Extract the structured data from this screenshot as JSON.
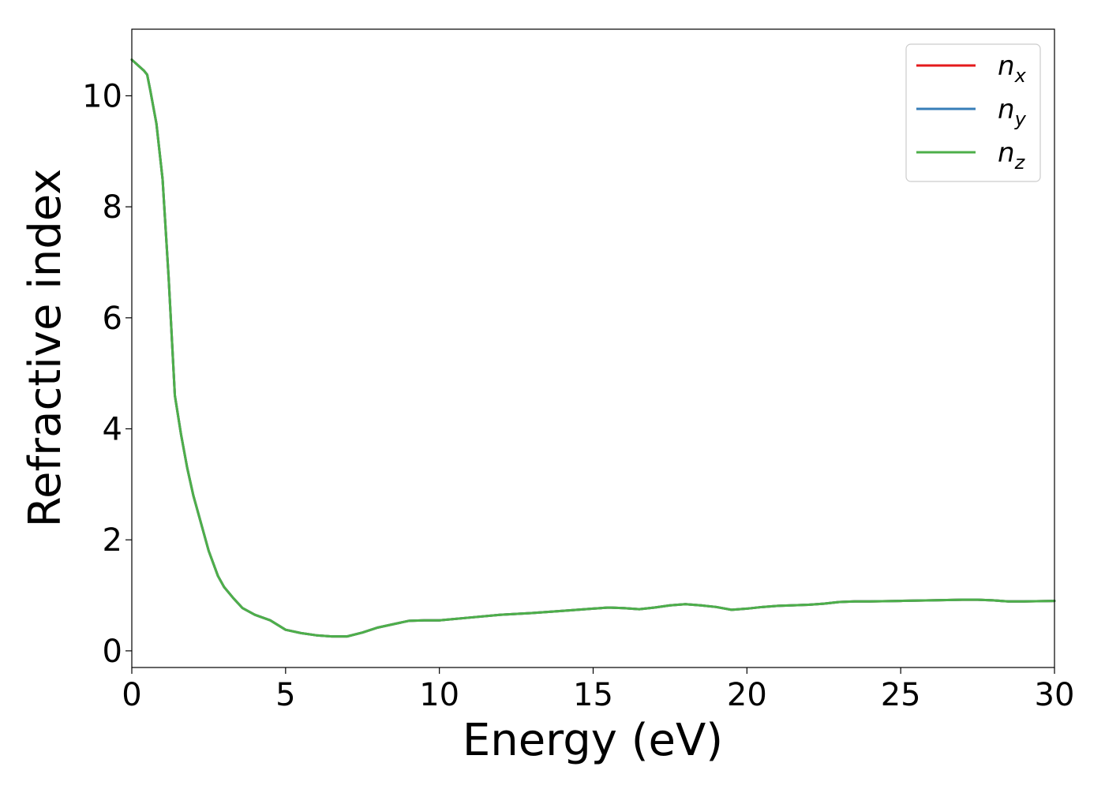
{
  "chart_data": {
    "type": "line",
    "xlabel": "Energy (eV)",
    "ylabel": "Refractive index",
    "xlim": [
      0,
      30
    ],
    "ylim": [
      -0.3,
      11.2
    ],
    "xticks": [
      0,
      5,
      10,
      15,
      20,
      25,
      30
    ],
    "yticks": [
      0,
      2,
      4,
      6,
      8,
      10
    ],
    "grid": false,
    "legend_position": "top-right",
    "series": [
      {
        "name": "n",
        "subscript": "x",
        "color": "#e41a1c",
        "x": [
          0,
          0.2,
          0.4,
          0.5,
          0.6,
          0.8,
          1.0,
          1.2,
          1.4,
          1.6,
          1.8,
          2.0,
          2.2,
          2.5,
          2.8,
          3.0,
          3.3,
          3.6,
          4.0,
          4.5,
          5.0,
          5.5,
          6.0,
          6.5,
          7.0,
          7.5,
          8.0,
          8.5,
          9.0,
          9.5,
          10.0,
          11.0,
          12.0,
          13.0,
          13.5,
          14.0,
          15.0,
          15.5,
          16.0,
          16.5,
          17.0,
          17.5,
          18.0,
          18.5,
          19.0,
          19.5,
          20.0,
          20.5,
          21.0,
          22.0,
          22.5,
          23.0,
          23.5,
          24.0,
          25.0,
          26.0,
          27.0,
          27.5,
          28.0,
          28.5,
          29.0,
          30.0
        ],
        "y": [
          10.65,
          10.55,
          10.45,
          10.38,
          10.1,
          9.5,
          8.5,
          6.7,
          4.6,
          3.9,
          3.3,
          2.8,
          2.4,
          1.8,
          1.35,
          1.15,
          0.95,
          0.77,
          0.65,
          0.55,
          0.38,
          0.32,
          0.28,
          0.26,
          0.26,
          0.33,
          0.42,
          0.48,
          0.54,
          0.55,
          0.55,
          0.6,
          0.65,
          0.68,
          0.7,
          0.72,
          0.76,
          0.78,
          0.77,
          0.75,
          0.78,
          0.82,
          0.84,
          0.82,
          0.79,
          0.74,
          0.76,
          0.79,
          0.81,
          0.83,
          0.85,
          0.88,
          0.89,
          0.89,
          0.9,
          0.91,
          0.92,
          0.92,
          0.91,
          0.89,
          0.89,
          0.9
        ]
      },
      {
        "name": "n",
        "subscript": "y",
        "color": "#377eb8",
        "x": [
          0,
          0.2,
          0.4,
          0.5,
          0.6,
          0.8,
          1.0,
          1.2,
          1.4,
          1.6,
          1.8,
          2.0,
          2.2,
          2.5,
          2.8,
          3.0,
          3.3,
          3.6,
          4.0,
          4.5,
          5.0,
          5.5,
          6.0,
          6.5,
          7.0,
          7.5,
          8.0,
          8.5,
          9.0,
          9.5,
          10.0,
          11.0,
          12.0,
          13.0,
          13.5,
          14.0,
          15.0,
          15.5,
          16.0,
          16.5,
          17.0,
          17.5,
          18.0,
          18.5,
          19.0,
          19.5,
          20.0,
          20.5,
          21.0,
          22.0,
          22.5,
          23.0,
          23.5,
          24.0,
          25.0,
          26.0,
          27.0,
          27.5,
          28.0,
          28.5,
          29.0,
          30.0
        ],
        "y": [
          10.65,
          10.55,
          10.45,
          10.38,
          10.1,
          9.5,
          8.5,
          6.7,
          4.6,
          3.9,
          3.3,
          2.8,
          2.4,
          1.8,
          1.35,
          1.15,
          0.95,
          0.77,
          0.65,
          0.55,
          0.38,
          0.32,
          0.28,
          0.26,
          0.26,
          0.33,
          0.42,
          0.48,
          0.54,
          0.55,
          0.55,
          0.6,
          0.65,
          0.68,
          0.7,
          0.72,
          0.76,
          0.78,
          0.77,
          0.75,
          0.78,
          0.82,
          0.84,
          0.82,
          0.79,
          0.74,
          0.76,
          0.79,
          0.81,
          0.83,
          0.85,
          0.88,
          0.89,
          0.89,
          0.9,
          0.91,
          0.92,
          0.92,
          0.91,
          0.89,
          0.89,
          0.9
        ]
      },
      {
        "name": "n",
        "subscript": "z",
        "color": "#4daf4a",
        "x": [
          0,
          0.2,
          0.4,
          0.5,
          0.6,
          0.8,
          1.0,
          1.2,
          1.4,
          1.6,
          1.8,
          2.0,
          2.2,
          2.5,
          2.8,
          3.0,
          3.3,
          3.6,
          4.0,
          4.5,
          5.0,
          5.5,
          6.0,
          6.5,
          7.0,
          7.5,
          8.0,
          8.5,
          9.0,
          9.5,
          10.0,
          11.0,
          12.0,
          13.0,
          13.5,
          14.0,
          15.0,
          15.5,
          16.0,
          16.5,
          17.0,
          17.5,
          18.0,
          18.5,
          19.0,
          19.5,
          20.0,
          20.5,
          21.0,
          22.0,
          22.5,
          23.0,
          23.5,
          24.0,
          25.0,
          26.0,
          27.0,
          27.5,
          28.0,
          28.5,
          29.0,
          30.0
        ],
        "y": [
          10.65,
          10.55,
          10.45,
          10.38,
          10.1,
          9.5,
          8.5,
          6.7,
          4.6,
          3.9,
          3.3,
          2.8,
          2.4,
          1.8,
          1.35,
          1.15,
          0.95,
          0.77,
          0.65,
          0.55,
          0.38,
          0.32,
          0.28,
          0.26,
          0.26,
          0.33,
          0.42,
          0.48,
          0.54,
          0.55,
          0.55,
          0.6,
          0.65,
          0.68,
          0.7,
          0.72,
          0.76,
          0.78,
          0.77,
          0.75,
          0.78,
          0.82,
          0.84,
          0.82,
          0.79,
          0.74,
          0.76,
          0.79,
          0.81,
          0.83,
          0.85,
          0.88,
          0.89,
          0.89,
          0.9,
          0.91,
          0.92,
          0.92,
          0.91,
          0.89,
          0.89,
          0.9
        ]
      }
    ]
  }
}
